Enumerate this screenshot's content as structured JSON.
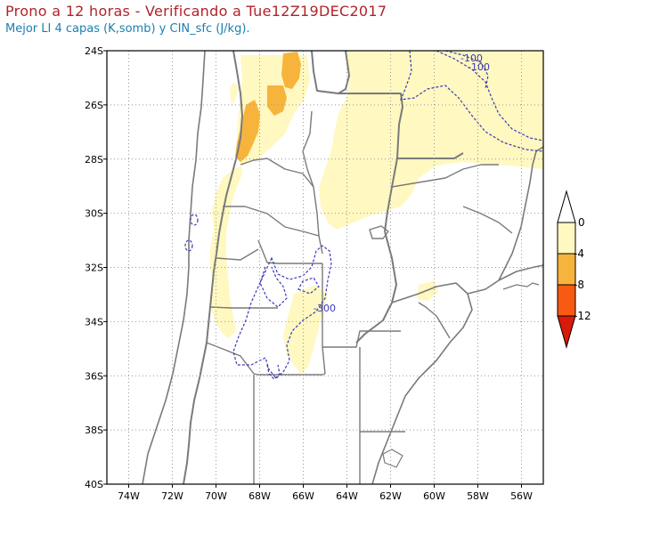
{
  "title": "Prono a 12 horas - Verificando a Tue12Z19DEC2017",
  "subtitle": "Mejor LI 4 capas (K,somb) y CIN_sfc (J/kg).",
  "map": {
    "lat_labels": [
      "24S",
      "26S",
      "28S",
      "30S",
      "32S",
      "34S",
      "36S",
      "38S",
      "40S"
    ],
    "lon_labels": [
      "74W",
      "72W",
      "70W",
      "68W",
      "66W",
      "64W",
      "62W",
      "60W",
      "58W",
      "56W"
    ],
    "lat_range": [
      -40,
      -24
    ],
    "lon_range": [
      -75,
      -55
    ],
    "grid": "dotted",
    "contour_labels": [
      "-100",
      "-100",
      "-300"
    ],
    "contour_color": "#3a3ab8"
  },
  "legend": {
    "labels": [
      "0",
      "-4",
      "-8",
      "-12"
    ],
    "colors": [
      "#fff8c0",
      "#f7b43c",
      "#f85a14",
      "#d81a0a"
    ]
  }
}
